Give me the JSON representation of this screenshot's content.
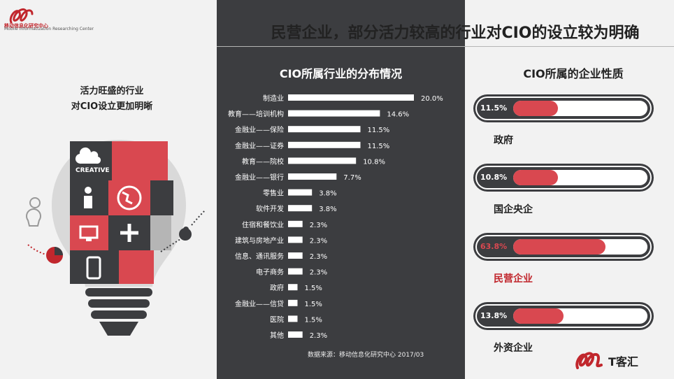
{
  "header": {
    "logo_cn": "移动信息化研究中心",
    "logo_en": "Mobile Informatization Researching Center",
    "headline": "民营企业，部分活力较高的行业对CIO的设立较为明确"
  },
  "left_panel": {
    "title_line1": "活力旺盛的行业",
    "title_line2": "对CIO设立更加明晰",
    "creative_label": "CREATIVE"
  },
  "chart_data": [
    {
      "type": "bar",
      "title": "CIO所属行业的分布情况",
      "orientation": "horizontal",
      "categories": [
        "制造业",
        "教育——培训机构",
        "金融业——保险",
        "金融业——证券",
        "教育——院校",
        "金融业——银行",
        "零售业",
        "软件开发",
        "住宿和餐饮业",
        "建筑与房地产业",
        "信息、通讯服务",
        "电子商务",
        "政府",
        "金融业——信贷",
        "医院",
        "其他"
      ],
      "values": [
        20.0,
        14.6,
        11.5,
        11.5,
        10.8,
        7.7,
        3.8,
        3.8,
        2.3,
        2.3,
        2.3,
        2.3,
        1.5,
        1.5,
        1.5,
        2.3
      ],
      "value_labels": [
        "20.0%",
        "14.6%",
        "11.5%",
        "11.5%",
        "10.8%",
        "7.7%",
        "3.8%",
        "3.8%",
        "2.3%",
        "2.3%",
        "2.3%",
        "2.3%",
        "1.5%",
        "1.5%",
        "1.5%",
        "2.3%"
      ],
      "unit": "%",
      "source": "数据来源：移动信息化研究中心 2017/03",
      "bar_color": "#ffffff"
    },
    {
      "type": "bar",
      "title": "CIO所属的企业性质",
      "orientation": "horizontal",
      "categories": [
        "政府",
        "国企央企",
        "民营企业",
        "外资企业"
      ],
      "values": [
        11.5,
        10.8,
        63.8,
        13.8
      ],
      "value_labels": [
        "11.5%",
        "10.8%",
        "63.8%",
        "13.8%"
      ],
      "unit": "%",
      "highlight": "民营企业",
      "bar_color": "#d94850"
    }
  ],
  "footer": {
    "brand_text": "T客汇"
  },
  "colors": {
    "accent": "#c1272d",
    "fill": "#d94850",
    "dark": "#3c3d40"
  }
}
